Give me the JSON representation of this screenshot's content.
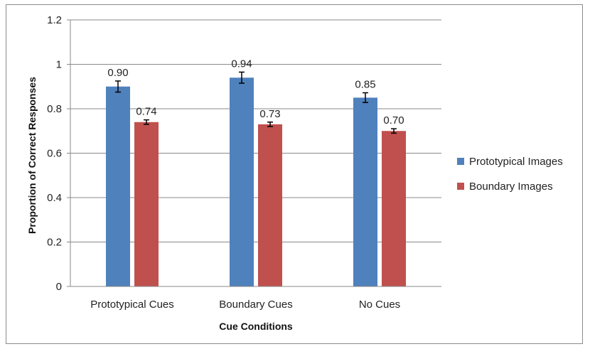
{
  "chart_data": {
    "type": "bar",
    "title": "",
    "xlabel": "Cue Conditions",
    "ylabel": "Proportion of Correct Responses",
    "ylim": [
      0,
      1.2
    ],
    "yticks": [
      0,
      0.2,
      0.4,
      0.6,
      0.8,
      1,
      1.2
    ],
    "ytick_labels": [
      "0",
      "0.2",
      "0.4",
      "0.6",
      "0.8",
      "1",
      "1.2"
    ],
    "grid": "horizontal",
    "legend_position": "right",
    "categories": [
      "Prototypical Cues",
      "Boundary Cues",
      "No Cues"
    ],
    "series": [
      {
        "name": "Prototypical Images",
        "color": "#4f81bd",
        "values": [
          0.9,
          0.94,
          0.85
        ],
        "labels": [
          "0.90",
          "0.94",
          "0.85"
        ],
        "error": [
          0.025,
          0.025,
          0.022
        ]
      },
      {
        "name": "Boundary Images",
        "color": "#c0504d",
        "values": [
          0.74,
          0.73,
          0.7
        ],
        "labels": [
          "0.74",
          "0.73",
          "0.70"
        ],
        "error": [
          0.01,
          0.01,
          0.01
        ]
      }
    ]
  }
}
